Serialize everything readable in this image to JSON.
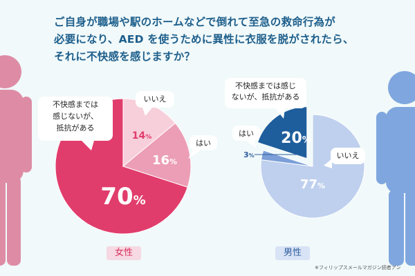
{
  "question_lines": [
    "ご自身が職場や駅のホームなどで倒れて至急の救命行為が",
    "必要になり、AED を使うために異性に衣服を脱がされたら、",
    "それに不快感を感じますか？"
  ],
  "chart_data": [
    {
      "type": "pie",
      "title": "女性",
      "slices": [
        {
          "label": "不快感までは感じないが、抵抗がある",
          "value": 70,
          "text": "70",
          "unit": "%",
          "color": "#e13d6c"
        },
        {
          "label": "いいえ",
          "value": 14,
          "text": "14",
          "unit": "%",
          "color": "#f7cfdb"
        },
        {
          "label": "はい",
          "value": 16,
          "text": "16",
          "unit": "%",
          "color": "#ec9eb6"
        }
      ],
      "label_lines": {
        "不快感までは感じないが、抵抗がある": [
          "不快感までは",
          "感じないが、",
          "抵抗がある"
        ],
        "いいえ": [
          "いいえ"
        ],
        "はい": [
          "はい"
        ]
      }
    },
    {
      "type": "pie",
      "title": "男性",
      "slices": [
        {
          "label": "いいえ",
          "value": 77,
          "text": "77",
          "unit": "%",
          "color": "#bfd0ee"
        },
        {
          "label": "はい",
          "value": 3,
          "text": "3",
          "unit": "%",
          "color": "#7c9fd8"
        },
        {
          "label": "不快感までは感じないが、抵抗がある",
          "value": 20,
          "text": "20",
          "unit": "%",
          "color": "#1f5e9c"
        }
      ],
      "label_lines": {
        "不快感までは感じないが、抵抗がある": [
          "不快感までは感じ",
          "ないが、抵抗がある"
        ],
        "いいえ": [
          "いいえ"
        ],
        "はい": [
          "はい"
        ]
      }
    }
  ],
  "gender_labels": {
    "female": "女性",
    "male": "男性"
  },
  "source_note": "※フィリップスメールマガジン読者アン",
  "colors": {
    "female_figure": "#de8ca6",
    "male_figure": "#7fa6de",
    "question_text": "#1e5f8c"
  }
}
